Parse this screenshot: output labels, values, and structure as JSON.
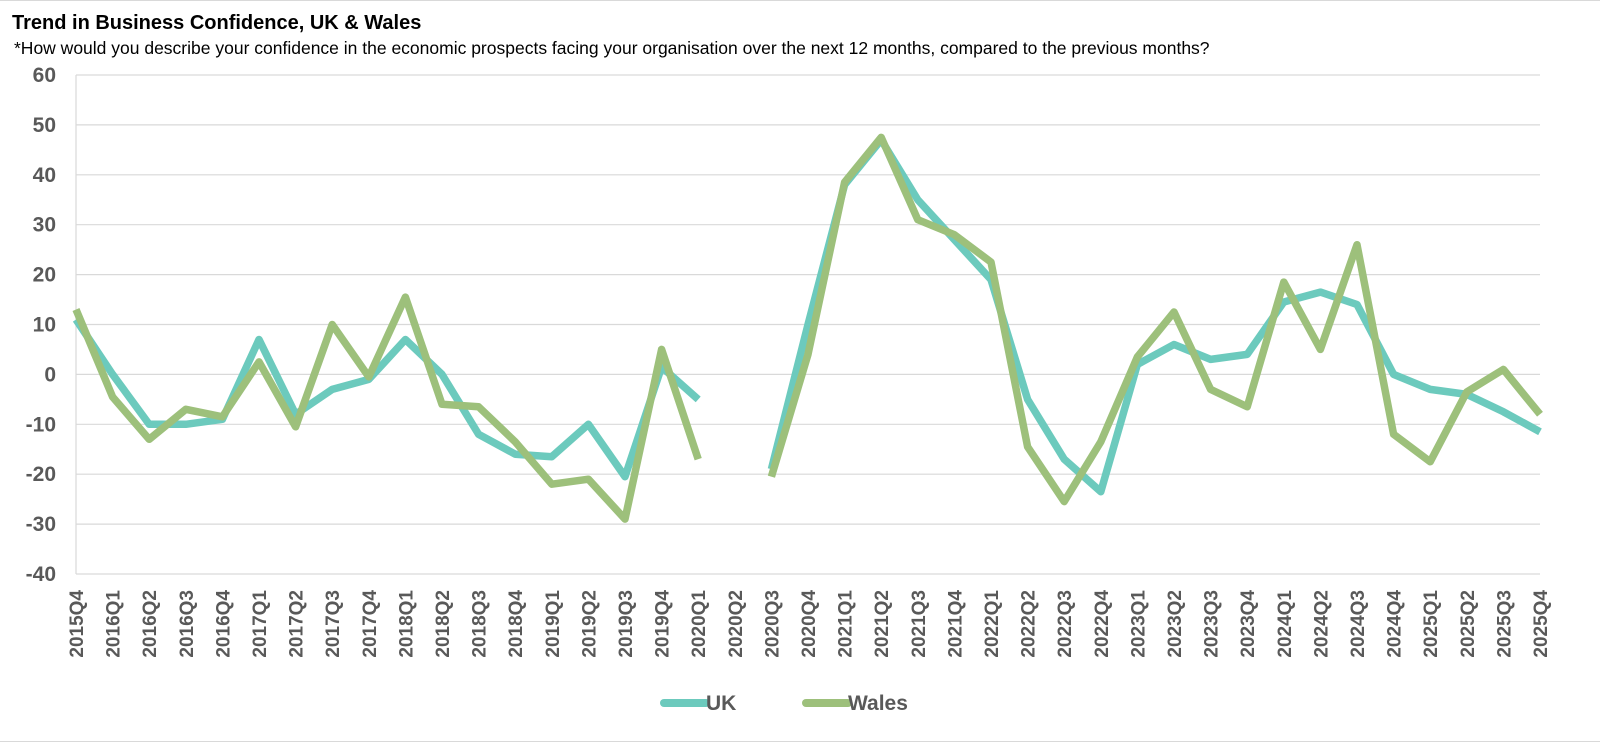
{
  "title": "Trend in Business Confidence, UK & Wales",
  "subtitle": "*How would you describe your confidence in the economic prospects facing your organisation over the next 12 months, compared to the previous months?",
  "colors": {
    "UK": "#6ccabd",
    "Wales": "#9dc07b",
    "grid": "#d9d9d9",
    "axis_text": "#595959"
  },
  "chart_data": {
    "type": "line",
    "title": "Trend in Business Confidence, UK & Wales",
    "xlabel": "",
    "ylabel": "",
    "ylim": [
      -40,
      60
    ],
    "yticks": [
      60,
      50,
      40,
      30,
      20,
      10,
      0,
      -10,
      -20,
      -30,
      -40
    ],
    "grid": "horizontal",
    "legend": "bottom-center",
    "categories": [
      "2015Q4",
      "2016Q1",
      "2016Q2",
      "2016Q3",
      "2016Q4",
      "2017Q1",
      "2017Q2",
      "2017Q3",
      "2017Q4",
      "2018Q1",
      "2018Q2",
      "2018Q3",
      "2018Q4",
      "2019Q1",
      "2019Q2",
      "2019Q3",
      "2019Q4",
      "2020Q1",
      "2020Q2",
      "2020Q3",
      "2020Q4",
      "2021Q1",
      "2021Q2",
      "2021Q3",
      "2021Q4",
      "2022Q1",
      "2022Q2",
      "2022Q3",
      "2022Q4",
      "2023Q1",
      "2023Q2",
      "2023Q3",
      "2023Q4",
      "2024Q1",
      "2024Q2",
      "2024Q3",
      "2024Q4",
      "2025Q1",
      "2025Q2",
      "2025Q3",
      "2025Q4"
    ],
    "series": [
      {
        "name": "UK",
        "values": [
          11,
          0,
          -10,
          -10,
          -9,
          7,
          -8,
          -3,
          -1,
          7,
          0,
          -12,
          -16,
          -16.5,
          -10,
          -20.5,
          1.5,
          -5,
          null,
          -19,
          10,
          38,
          47,
          35,
          27,
          19,
          -5,
          -17,
          -23.5,
          2,
          6,
          3,
          4,
          14.5,
          16.5,
          14,
          0,
          -3,
          -4,
          -7.5,
          -11.5
        ]
      },
      {
        "name": "Wales",
        "values": [
          13,
          -4.5,
          -13,
          -7,
          -8.5,
          2.5,
          -10.5,
          10,
          -0.5,
          15.5,
          -6,
          -6.5,
          -13.5,
          -22,
          -21,
          -29,
          5,
          -17,
          null,
          -20.5,
          4,
          38.5,
          47.5,
          31,
          28,
          22.5,
          -14.5,
          -25.5,
          -13.5,
          3.5,
          12.5,
          -3,
          -6.5,
          18.5,
          5,
          26,
          -12,
          -17.5,
          -3.5,
          1,
          -8
        ]
      }
    ]
  }
}
